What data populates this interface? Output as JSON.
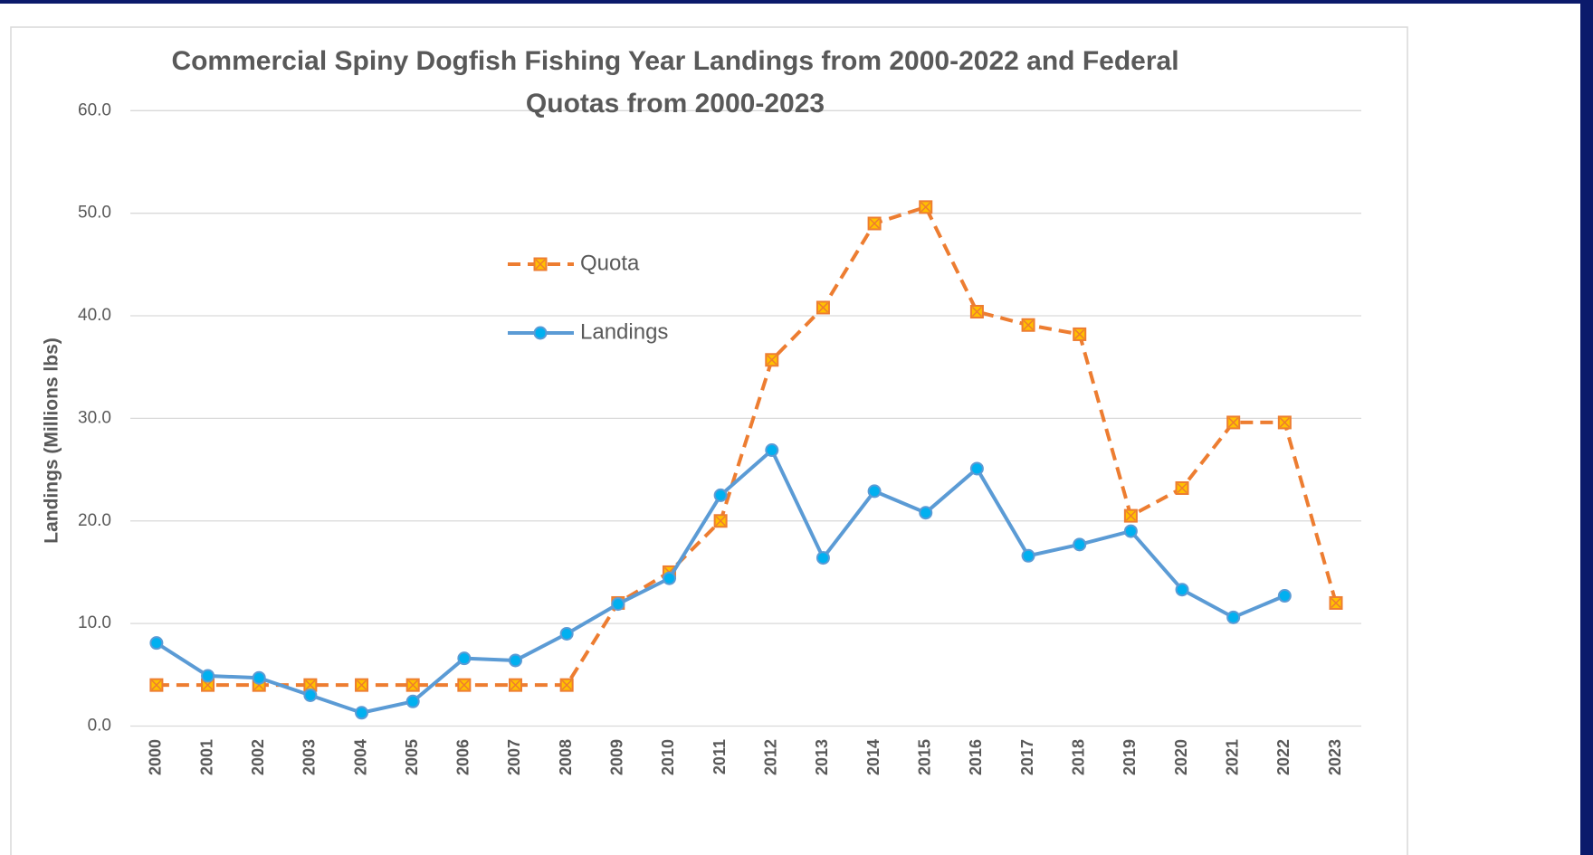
{
  "chart_data": {
    "type": "line",
    "title": "Commercial Spiny Dogfish Fishing Year Landings from 2000-2022 and Federal Quotas from 2000-2023",
    "y_label": "Landings (Millions lbs)",
    "categories": [
      "2000",
      "2001",
      "2002",
      "2003",
      "2004",
      "2005",
      "2006",
      "2007",
      "2008",
      "2009",
      "2010",
      "2011",
      "2012",
      "2013",
      "2014",
      "2015",
      "2016",
      "2017",
      "2018",
      "2019",
      "2020",
      "2021",
      "2022",
      "2023"
    ],
    "series": [
      {
        "name": "Quota",
        "color": "#ED7D31",
        "dashed": true,
        "marker": "square",
        "values": [
          4.0,
          4.0,
          4.0,
          4.0,
          4.0,
          4.0,
          4.0,
          4.0,
          4.0,
          12.0,
          15.0,
          20.0,
          35.7,
          40.8,
          49.0,
          50.6,
          40.4,
          39.1,
          38.2,
          20.5,
          23.2,
          29.6,
          29.6,
          12.0
        ]
      },
      {
        "name": "Landings",
        "color": "#5B9BD5",
        "dashed": false,
        "marker": "circle",
        "values": [
          8.1,
          4.9,
          4.7,
          3.0,
          1.3,
          2.4,
          6.6,
          6.4,
          9.0,
          11.9,
          14.4,
          22.5,
          26.9,
          16.4,
          22.9,
          20.8,
          25.1,
          16.6,
          17.7,
          19.0,
          13.3,
          10.6,
          12.7,
          null
        ]
      }
    ],
    "ylim": [
      0,
      60
    ],
    "yticks": [
      {
        "value": 0,
        "label": "0.0"
      },
      {
        "value": 10,
        "label": "10.0"
      },
      {
        "value": 20,
        "label": "20.0"
      },
      {
        "value": 30,
        "label": "30.0"
      },
      {
        "value": 40,
        "label": "40.0"
      },
      {
        "value": 50,
        "label": "50.0"
      },
      {
        "value": 60,
        "label": "60.0"
      }
    ],
    "grid": true
  }
}
